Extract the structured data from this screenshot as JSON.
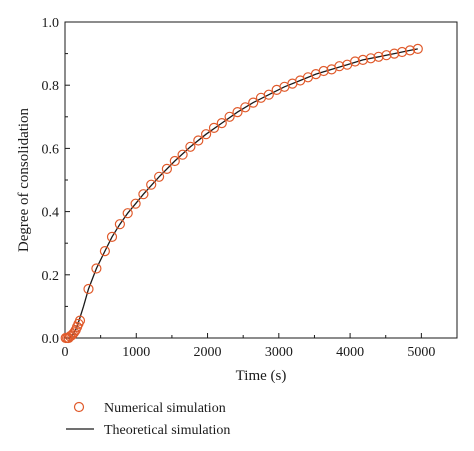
{
  "chart_data": {
    "type": "scatter",
    "xlabel": "Time (s)",
    "ylabel": "Degree of consolidation",
    "xlim": [
      0,
      5500
    ],
    "ylim": [
      0,
      1.0
    ],
    "x_ticks": [
      0,
      1000,
      2000,
      3000,
      4000,
      5000
    ],
    "x_tick_labels": [
      "0",
      "1000",
      "2000",
      "3000",
      "4000",
      "5000"
    ],
    "y_ticks": [
      0,
      0.2,
      0.4,
      0.6,
      0.8,
      1.0
    ],
    "y_tick_labels": [
      "0.0",
      "0.2",
      "0.4",
      "0.6",
      "0.8",
      "1.0"
    ],
    "grid": false,
    "legend_position": "bottom-left, below plot",
    "series": [
      {
        "name": "Numerical simulation",
        "kind": "scatter",
        "marker": "open-circle",
        "color": "#e05a2b",
        "x": [
          10,
          30,
          50,
          70,
          90,
          110,
          130,
          150,
          170,
          190,
          210,
          330,
          440,
          560,
          660,
          770,
          880,
          990,
          1100,
          1210,
          1320,
          1430,
          1540,
          1650,
          1760,
          1870,
          1980,
          2090,
          2200,
          2310,
          2420,
          2530,
          2640,
          2750,
          2860,
          2970,
          3080,
          3190,
          3300,
          3410,
          3520,
          3630,
          3740,
          3850,
          3960,
          4070,
          4180,
          4290,
          4400,
          4510,
          4620,
          4730,
          4840,
          4950
        ],
        "y": [
          0.0,
          0.0,
          0.0,
          0.005,
          0.008,
          0.012,
          0.018,
          0.025,
          0.035,
          0.045,
          0.055,
          0.155,
          0.22,
          0.275,
          0.32,
          0.36,
          0.395,
          0.425,
          0.455,
          0.485,
          0.51,
          0.535,
          0.56,
          0.58,
          0.605,
          0.625,
          0.645,
          0.665,
          0.68,
          0.7,
          0.715,
          0.73,
          0.745,
          0.76,
          0.77,
          0.785,
          0.795,
          0.805,
          0.815,
          0.825,
          0.835,
          0.845,
          0.85,
          0.86,
          0.865,
          0.875,
          0.88,
          0.885,
          0.89,
          0.895,
          0.9,
          0.905,
          0.91,
          0.915
        ]
      },
      {
        "name": "Theoretical simulation",
        "kind": "line",
        "color": "#1a1a1a",
        "x": [
          0,
          60,
          110,
          160,
          210,
          260,
          330,
          440,
          560,
          660,
          770,
          880,
          990,
          1100,
          1320,
          1540,
          1760,
          1980,
          2200,
          2420,
          2640,
          2860,
          3080,
          3300,
          3520,
          3740,
          3960,
          4180,
          4400,
          4620,
          4840,
          4950
        ],
        "y": [
          0.0,
          0.0,
          0.01,
          0.03,
          0.065,
          0.1,
          0.155,
          0.22,
          0.275,
          0.32,
          0.36,
          0.395,
          0.425,
          0.455,
          0.51,
          0.56,
          0.605,
          0.645,
          0.68,
          0.715,
          0.745,
          0.77,
          0.795,
          0.815,
          0.835,
          0.85,
          0.865,
          0.88,
          0.89,
          0.9,
          0.91,
          0.915
        ]
      }
    ]
  }
}
